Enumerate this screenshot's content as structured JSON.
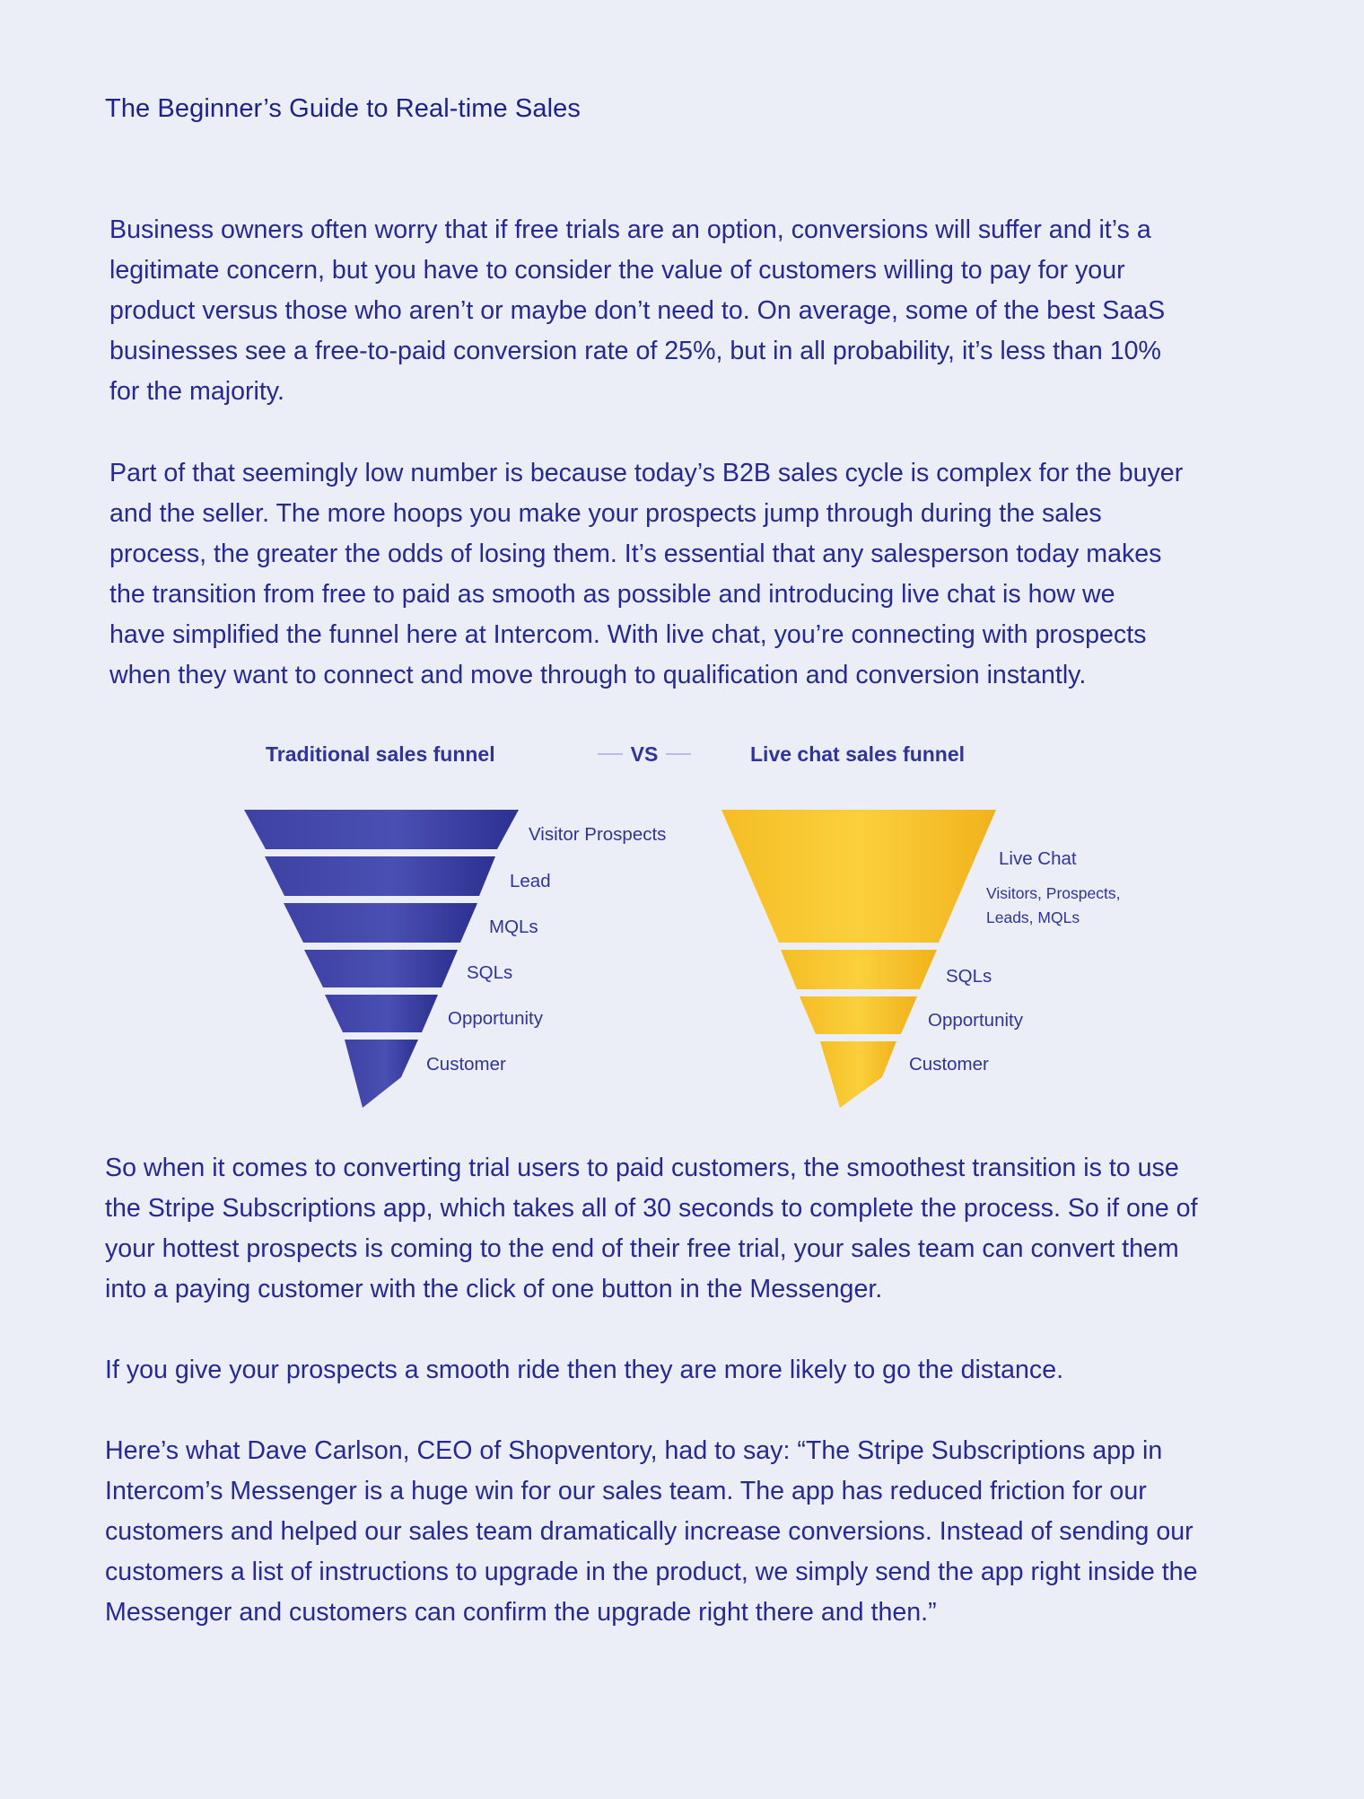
{
  "header": {
    "title": "The Beginner’s Guide to Real-time Sales"
  },
  "paragraphs": {
    "p1": [
      "Business owners often worry that if free trials are an option, conversions will suffer and it’s a",
      "legitimate concern, but you have to consider the value of customers willing to pay for your",
      "product versus those who aren’t or maybe don’t need to. On average, some of the best SaaS",
      "businesses see a free-to-paid conversion rate of 25%, but in all probability, it’s less than 10%",
      "for the majority."
    ],
    "p2": [
      "Part of that seemingly low number is because today’s B2B sales cycle is complex for the buyer",
      "and the seller. The more hoops you make your prospects jump through during the sales",
      "process, the greater the odds of losing them. It’s essential that any salesperson today makes",
      "the transition from free to paid as smooth as possible and introducing live chat is how we",
      "have simplified the funnel here at Intercom. With live chat, you’re connecting with prospects",
      "when they want to connect and move through to qualification and conversion instantly."
    ],
    "p3": [
      "So when it comes to converting trial users to paid customers, the smoothest transition is to use",
      "the Stripe Subscriptions app, which takes all of 30 seconds to complete the process. So if one of",
      "your hottest prospects is coming to the end of their free trial, your sales team can convert them",
      "into a paying customer with the click of one button in the Messenger."
    ],
    "p4": [
      "If you give your prospects a smooth ride then they are more likely to go the distance."
    ],
    "p5": [
      "Here’s what Dave Carlson, CEO of Shopventory, had to say: “The Stripe Subscriptions app in",
      "Intercom’s Messenger is a huge win for our sales team. The app has reduced friction for our",
      "customers and helped our sales team dramatically increase conversions. Instead of sending our",
      "customers a list of instructions to upgrade in the product, we simply send the app right inside the",
      "Messenger and customers can confirm the upgrade right there and then.”"
    ]
  },
  "funnel_comparison": {
    "vs_label": "VS",
    "traditional": {
      "title": "Traditional sales funnel",
      "color": "#3a3f9f",
      "stages": [
        "Visitor Prospects",
        "Lead",
        "MQLs",
        "SQLs",
        "Opportunity",
        "Customer"
      ]
    },
    "live_chat": {
      "title": "Live chat sales funnel",
      "color": "#f7c630",
      "top_stage": "Live Chat",
      "top_stage_detail": [
        "Visitors, Prospects,",
        "Leads, MQLs"
      ],
      "stages": [
        "SQLs",
        "Opportunity",
        "Customer"
      ]
    }
  }
}
